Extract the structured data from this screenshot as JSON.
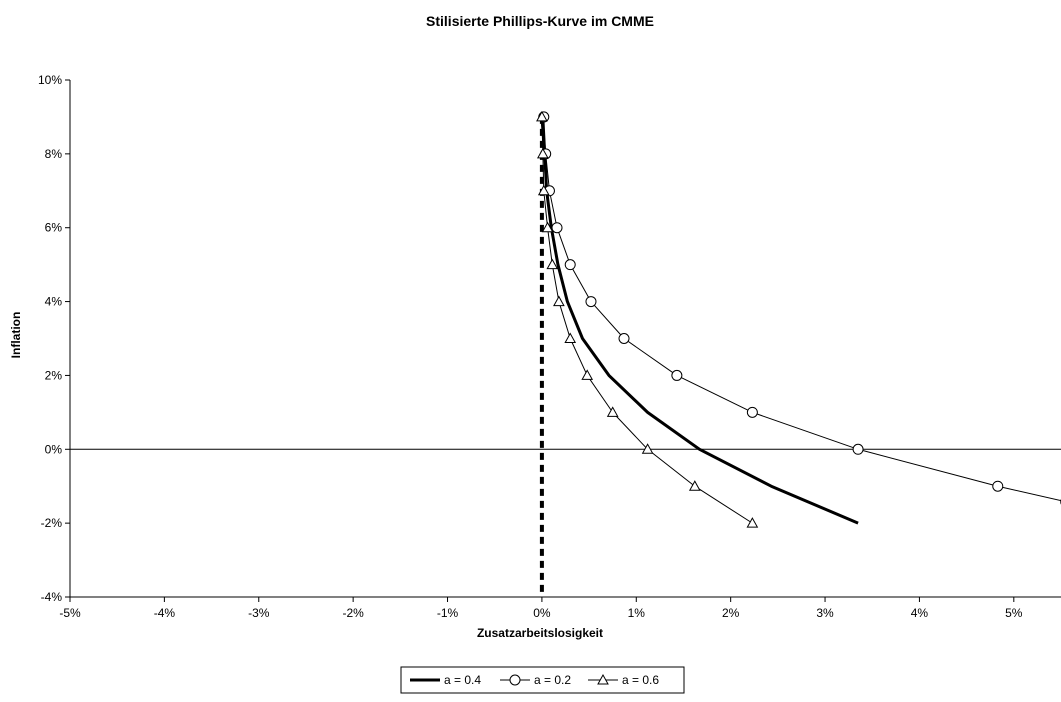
{
  "chart_data": {
    "type": "line",
    "title": "Stilisierte Phillips-Kurve im CMME",
    "xlabel": "Zusatzarbeitslosigkeit",
    "ylabel": "Inflation",
    "xlim": [
      -0.05,
      0.055
    ],
    "ylim": [
      -0.04,
      0.1
    ],
    "x_ticks": [
      -0.05,
      -0.04,
      -0.03,
      -0.02,
      -0.01,
      0.0,
      0.01,
      0.02,
      0.03,
      0.04,
      0.05
    ],
    "x_tick_labels": [
      "-5%",
      "-4%",
      "-3%",
      "-2%",
      "-1%",
      "0%",
      "1%",
      "2%",
      "3%",
      "4%",
      "5%"
    ],
    "y_ticks": [
      -0.04,
      -0.02,
      0.0,
      0.02,
      0.04,
      0.06,
      0.08,
      0.1
    ],
    "y_tick_labels": [
      "-4%",
      "-2%",
      "0%",
      "2%",
      "4%",
      "6%",
      "8%",
      "10%"
    ],
    "grid": false,
    "legend_position": "bottom",
    "series": [
      {
        "name": "a = 0.4",
        "marker": "none",
        "line_style": "bold",
        "color": "#000000",
        "x": [
          0.0,
          0.0003,
          0.0005,
          0.001,
          0.0017,
          0.0027,
          0.0043,
          0.0071,
          0.0112,
          0.0167,
          0.0243,
          0.0335
        ],
        "y": [
          0.09,
          0.08,
          0.07,
          0.06,
          0.05,
          0.04,
          0.03,
          0.02,
          0.01,
          0.0,
          -0.01,
          -0.02
        ]
      },
      {
        "name": "a = 0.2",
        "marker": "circle",
        "line_style": "thin",
        "color": "#000000",
        "x": [
          0.0002,
          0.0004,
          0.0008,
          0.0016,
          0.003,
          0.0052,
          0.0087,
          0.0143,
          0.0223,
          0.0335,
          0.0483,
          0.0555
        ],
        "y": [
          0.09,
          0.08,
          0.07,
          0.06,
          0.05,
          0.04,
          0.03,
          0.02,
          0.01,
          0.0,
          -0.01,
          -0.0142
        ]
      },
      {
        "name": "a = 0.6",
        "marker": "triangle",
        "line_style": "thin",
        "color": "#000000",
        "x": [
          0.0,
          0.0001,
          0.0002,
          0.0006,
          0.0011,
          0.0018,
          0.003,
          0.0048,
          0.0075,
          0.0112,
          0.0162,
          0.0223
        ],
        "y": [
          0.09,
          0.08,
          0.07,
          0.06,
          0.05,
          0.04,
          0.03,
          0.02,
          0.01,
          0.0,
          -0.01,
          -0.02
        ]
      }
    ],
    "reference_lines": [
      {
        "orientation": "vertical",
        "value": 0.0,
        "style": "dashed-bold"
      },
      {
        "orientation": "horizontal",
        "value": 0.0,
        "style": "solid-thin"
      }
    ],
    "legend": {
      "entries": [
        "a = 0.4",
        "a = 0.2",
        "a = 0.6"
      ]
    }
  }
}
